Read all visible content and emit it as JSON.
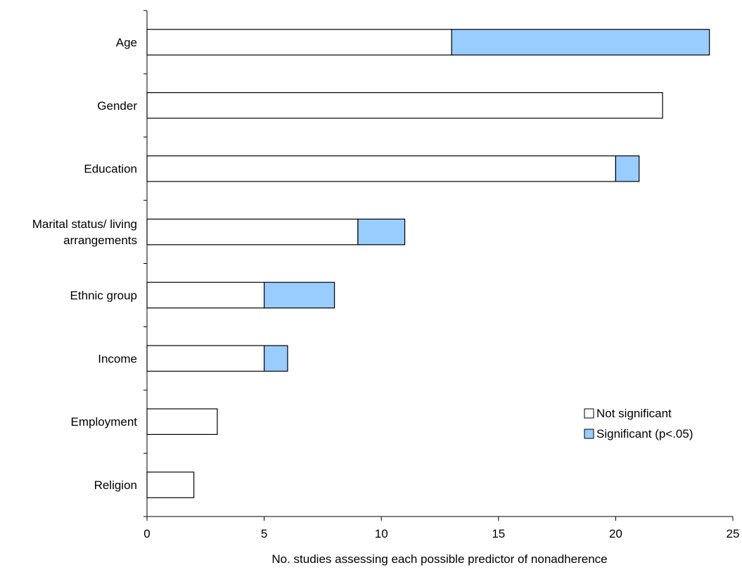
{
  "chart_data": {
    "type": "bar",
    "orientation": "horizontal",
    "stacked": true,
    "categories": [
      [
        "Age"
      ],
      [
        "Gender"
      ],
      [
        "Education"
      ],
      [
        "Marital status/ living",
        "arrangements"
      ],
      [
        "Ethnic group"
      ],
      [
        "Income"
      ],
      [
        "Employment"
      ],
      [
        "Religion"
      ]
    ],
    "series": [
      {
        "name": "Not significant",
        "color": "#FFFFFF",
        "values": [
          13,
          22,
          20,
          9,
          5,
          5,
          3,
          2
        ]
      },
      {
        "name": "Significant (p<.05)",
        "color": "#99CCFF",
        "values": [
          11,
          0,
          1,
          2,
          3,
          1,
          0,
          0
        ]
      }
    ],
    "xlabel": "No. studies assessing each possible predictor of nonadherence",
    "xlim": [
      0,
      25
    ],
    "xticks": [
      "0",
      "5",
      "10",
      "15",
      "20",
      "25"
    ],
    "grid": false,
    "legend_position": "lower-right"
  }
}
